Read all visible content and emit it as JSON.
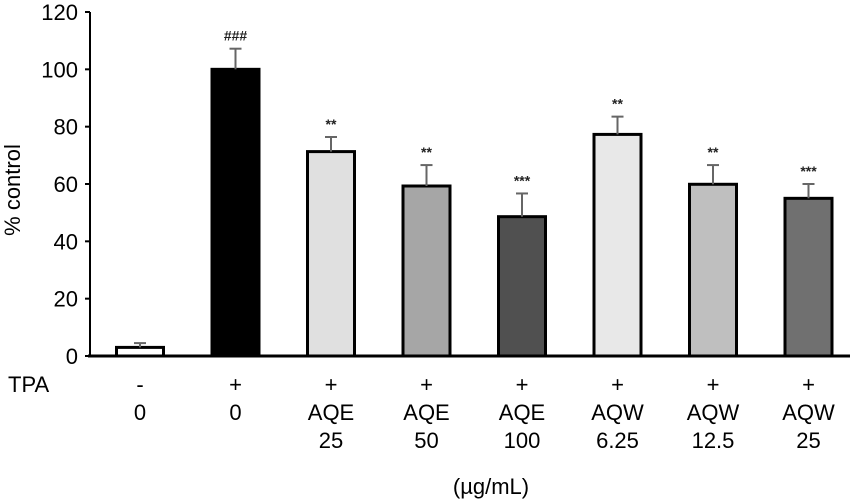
{
  "chart_data": {
    "type": "bar",
    "title": "",
    "xlabel": "(µg/mL)",
    "ylabel": "% control",
    "ylim": [
      0,
      120
    ],
    "yticks": [
      0,
      20,
      40,
      60,
      80,
      100,
      120
    ],
    "grid": false,
    "row_label": "TPA",
    "categories": [
      {
        "tpa": "-",
        "agent": "0",
        "dose": ""
      },
      {
        "tpa": "+",
        "agent": "0",
        "dose": ""
      },
      {
        "tpa": "+",
        "agent": "AQE",
        "dose": "25"
      },
      {
        "tpa": "+",
        "agent": "AQE",
        "dose": "50"
      },
      {
        "tpa": "+",
        "agent": "AQE",
        "dose": "100"
      },
      {
        "tpa": "+",
        "agent": "AQW",
        "dose": "6.25"
      },
      {
        "tpa": "+",
        "agent": "AQW",
        "dose": "12.5"
      },
      {
        "tpa": "+",
        "agent": "AQW",
        "dose": "25"
      }
    ],
    "values": [
      3,
      100,
      71.3,
      59.3,
      48.6,
      77.3,
      59.9,
      55.0
    ],
    "errors": [
      1.5,
      7.2,
      5.1,
      7.3,
      8.1,
      6.2,
      6.7,
      5.0
    ],
    "annotations": [
      "",
      "###",
      "**",
      "**",
      "***",
      "**",
      "**",
      "***"
    ],
    "colors": [
      "#ffffff",
      "#000000",
      "#e0e0e0",
      "#a6a6a6",
      "#505050",
      "#e8e8e8",
      "#bfbfbf",
      "#707070"
    ]
  }
}
